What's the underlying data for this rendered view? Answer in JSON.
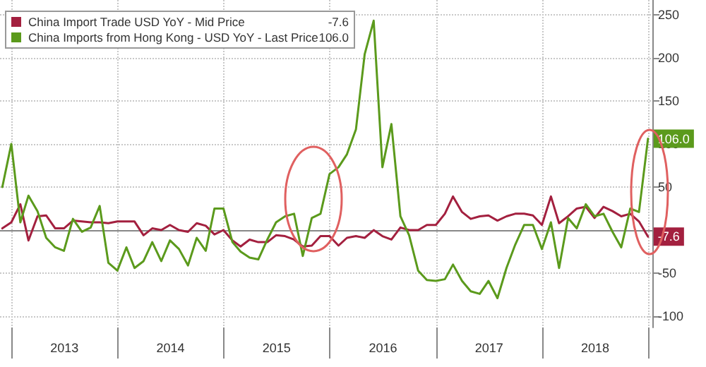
{
  "chart_data": {
    "type": "line",
    "legend": "top left",
    "grid": true,
    "marker": "none",
    "line_style": "solid",
    "x": [
      "2012-11-30",
      "2012-12-31",
      "2013-01-31",
      "2013-02-28",
      "2013-03-31",
      "2013-04-30",
      "2013-05-31",
      "2013-06-30",
      "2013-07-31",
      "2013-08-31",
      "2013-09-30",
      "2013-10-31",
      "2013-11-30",
      "2013-12-31",
      "2014-01-31",
      "2014-02-28",
      "2014-03-31",
      "2014-04-30",
      "2014-05-31",
      "2014-06-30",
      "2014-07-31",
      "2014-08-31",
      "2014-09-30",
      "2014-10-31",
      "2014-11-30",
      "2014-12-31",
      "2015-01-31",
      "2015-02-28",
      "2015-03-31",
      "2015-04-30",
      "2015-05-31",
      "2015-06-30",
      "2015-07-31",
      "2015-08-31",
      "2015-09-30",
      "2015-10-31",
      "2015-11-30",
      "2015-12-31",
      "2016-01-31",
      "2016-02-29",
      "2016-03-31",
      "2016-04-30",
      "2016-05-31",
      "2016-06-30",
      "2016-07-31",
      "2016-08-31",
      "2016-09-30",
      "2016-10-31",
      "2016-11-30",
      "2016-12-31",
      "2017-01-31",
      "2017-02-28",
      "2017-03-31",
      "2017-04-30",
      "2017-05-31",
      "2017-06-30",
      "2017-07-31",
      "2017-08-31",
      "2017-09-30",
      "2017-10-31",
      "2017-11-30",
      "2017-12-31",
      "2018-01-31",
      "2018-02-28",
      "2018-03-31",
      "2018-04-30",
      "2018-05-31",
      "2018-06-30",
      "2018-07-31",
      "2018-08-31",
      "2018-09-30",
      "2018-10-31",
      "2018-11-30",
      "2018-12-31"
    ],
    "xlim": [
      "2012-11-22",
      "2019-01-15"
    ],
    "xticks": [
      {
        "value": "2013-01-01",
        "label": null
      },
      {
        "value": "2013-07-02",
        "label": "2013"
      },
      {
        "value": "2014-01-01",
        "label": null
      },
      {
        "value": "2014-07-02",
        "label": "2014"
      },
      {
        "value": "2015-01-01",
        "label": null
      },
      {
        "value": "2015-07-02",
        "label": "2015"
      },
      {
        "value": "2016-01-01",
        "label": null
      },
      {
        "value": "2016-07-02",
        "label": "2016"
      },
      {
        "value": "2017-01-01",
        "label": null
      },
      {
        "value": "2017-07-02",
        "label": "2017"
      },
      {
        "value": "2018-01-01",
        "label": null
      },
      {
        "value": "2018-07-02",
        "label": "2018"
      },
      {
        "value": "2019-01-01",
        "label": null
      }
    ],
    "ylim": [
      -113,
      267
    ],
    "yticks": [
      -100,
      -50,
      {
        "value": 0,
        "label": null
      },
      50,
      100,
      150,
      200,
      250
    ],
    "series": [
      {
        "name": "China Import Trade USD YoY - Mid Price",
        "color": "#a3203f",
        "value_labels": [
          null,
          null,
          null,
          null,
          null,
          null,
          null,
          null,
          null,
          null,
          null,
          null,
          null,
          null,
          null,
          null,
          null,
          null,
          null,
          null,
          null,
          null,
          null,
          null,
          null,
          null,
          null,
          null,
          null,
          null,
          null,
          null,
          null,
          null,
          null,
          null,
          null,
          null,
          null,
          null,
          null,
          null,
          null,
          null,
          null,
          null,
          null,
          null,
          null,
          null,
          null,
          null,
          null,
          null,
          null,
          null,
          null,
          null,
          null,
          null,
          null,
          null,
          null,
          null,
          null,
          null,
          null,
          null,
          null,
          null,
          null,
          null,
          null,
          "-7.6"
        ],
        "values": [
          2,
          9,
          30,
          -12,
          16,
          17,
          2,
          2,
          11,
          10,
          9,
          9,
          8,
          10,
          10,
          10,
          -6,
          2,
          0,
          6,
          0,
          -2,
          8,
          5,
          -5,
          0,
          -12,
          -19,
          -11,
          -14,
          -14,
          -6,
          -7,
          -11,
          -19,
          -18,
          -7,
          -7,
          -18,
          -9,
          -7,
          -9,
          0,
          -7,
          -11,
          3,
          0,
          0,
          6,
          6,
          19,
          39,
          21,
          13,
          16,
          17,
          11,
          16,
          19,
          19,
          17,
          6,
          39,
          8,
          16,
          25,
          27,
          14,
          27,
          22,
          16,
          19,
          10,
          -7.6
        ]
      },
      {
        "name": "China Imports from Hong Kong - USD YoY - Last Price",
        "color": "#5b9a1c",
        "value_labels": [
          null,
          null,
          null,
          null,
          null,
          null,
          null,
          null,
          null,
          null,
          null,
          null,
          null,
          null,
          null,
          null,
          null,
          null,
          null,
          null,
          null,
          null,
          null,
          null,
          null,
          null,
          null,
          null,
          null,
          null,
          null,
          null,
          null,
          null,
          null,
          null,
          null,
          null,
          null,
          null,
          null,
          null,
          null,
          null,
          null,
          null,
          null,
          null,
          null,
          null,
          null,
          null,
          null,
          null,
          null,
          null,
          null,
          null,
          null,
          null,
          null,
          null,
          null,
          null,
          null,
          null,
          null,
          null,
          null,
          null,
          null,
          null,
          null,
          "106.0"
        ],
        "values": [
          50,
          100,
          9,
          40,
          22,
          -9,
          -20,
          -24,
          13,
          -2,
          3,
          28,
          -38,
          -47,
          -20,
          -44,
          -36,
          -14,
          -36,
          -12,
          -22,
          -41,
          -9,
          -24,
          25,
          25,
          -14,
          -25,
          -32,
          -34,
          -11,
          9,
          16,
          19,
          -30,
          14,
          19,
          65,
          73,
          88,
          117,
          204,
          243,
          73,
          123,
          16,
          -6,
          -47,
          -58,
          -59,
          -57,
          -40,
          -59,
          -71,
          -74,
          -59,
          -79,
          -44,
          -17,
          6,
          6,
          -22,
          9,
          -44,
          14,
          2,
          30,
          16,
          19,
          -2,
          -20,
          25,
          21,
          106
        ]
      }
    ]
  }
}
